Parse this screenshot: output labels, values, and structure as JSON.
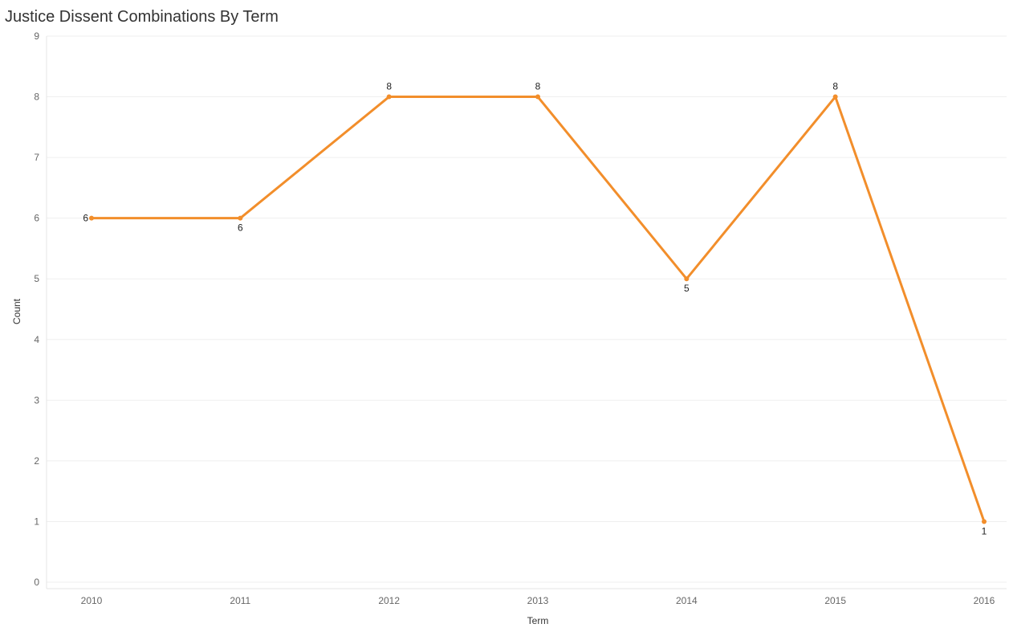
{
  "chart_data": {
    "type": "line",
    "title": "Justice Dissent Combinations By Term",
    "xlabel": "Term",
    "ylabel": "Count",
    "categories": [
      "2010",
      "2011",
      "2012",
      "2013",
      "2014",
      "2015",
      "2016"
    ],
    "series": [
      {
        "values": [
          6,
          6,
          8,
          8,
          5,
          8,
          1
        ],
        "color": "#f28e2b"
      }
    ],
    "ylim": [
      0,
      9
    ],
    "yticks": [
      "0",
      "1",
      "2",
      "3",
      "4",
      "5",
      "6",
      "7",
      "8",
      "9"
    ],
    "data_labels": [
      "6",
      "6",
      "8",
      "8",
      "5",
      "8",
      "1"
    ],
    "grid": true,
    "gridline_color": "#efefef",
    "axis_color": "#e6e6e6"
  }
}
